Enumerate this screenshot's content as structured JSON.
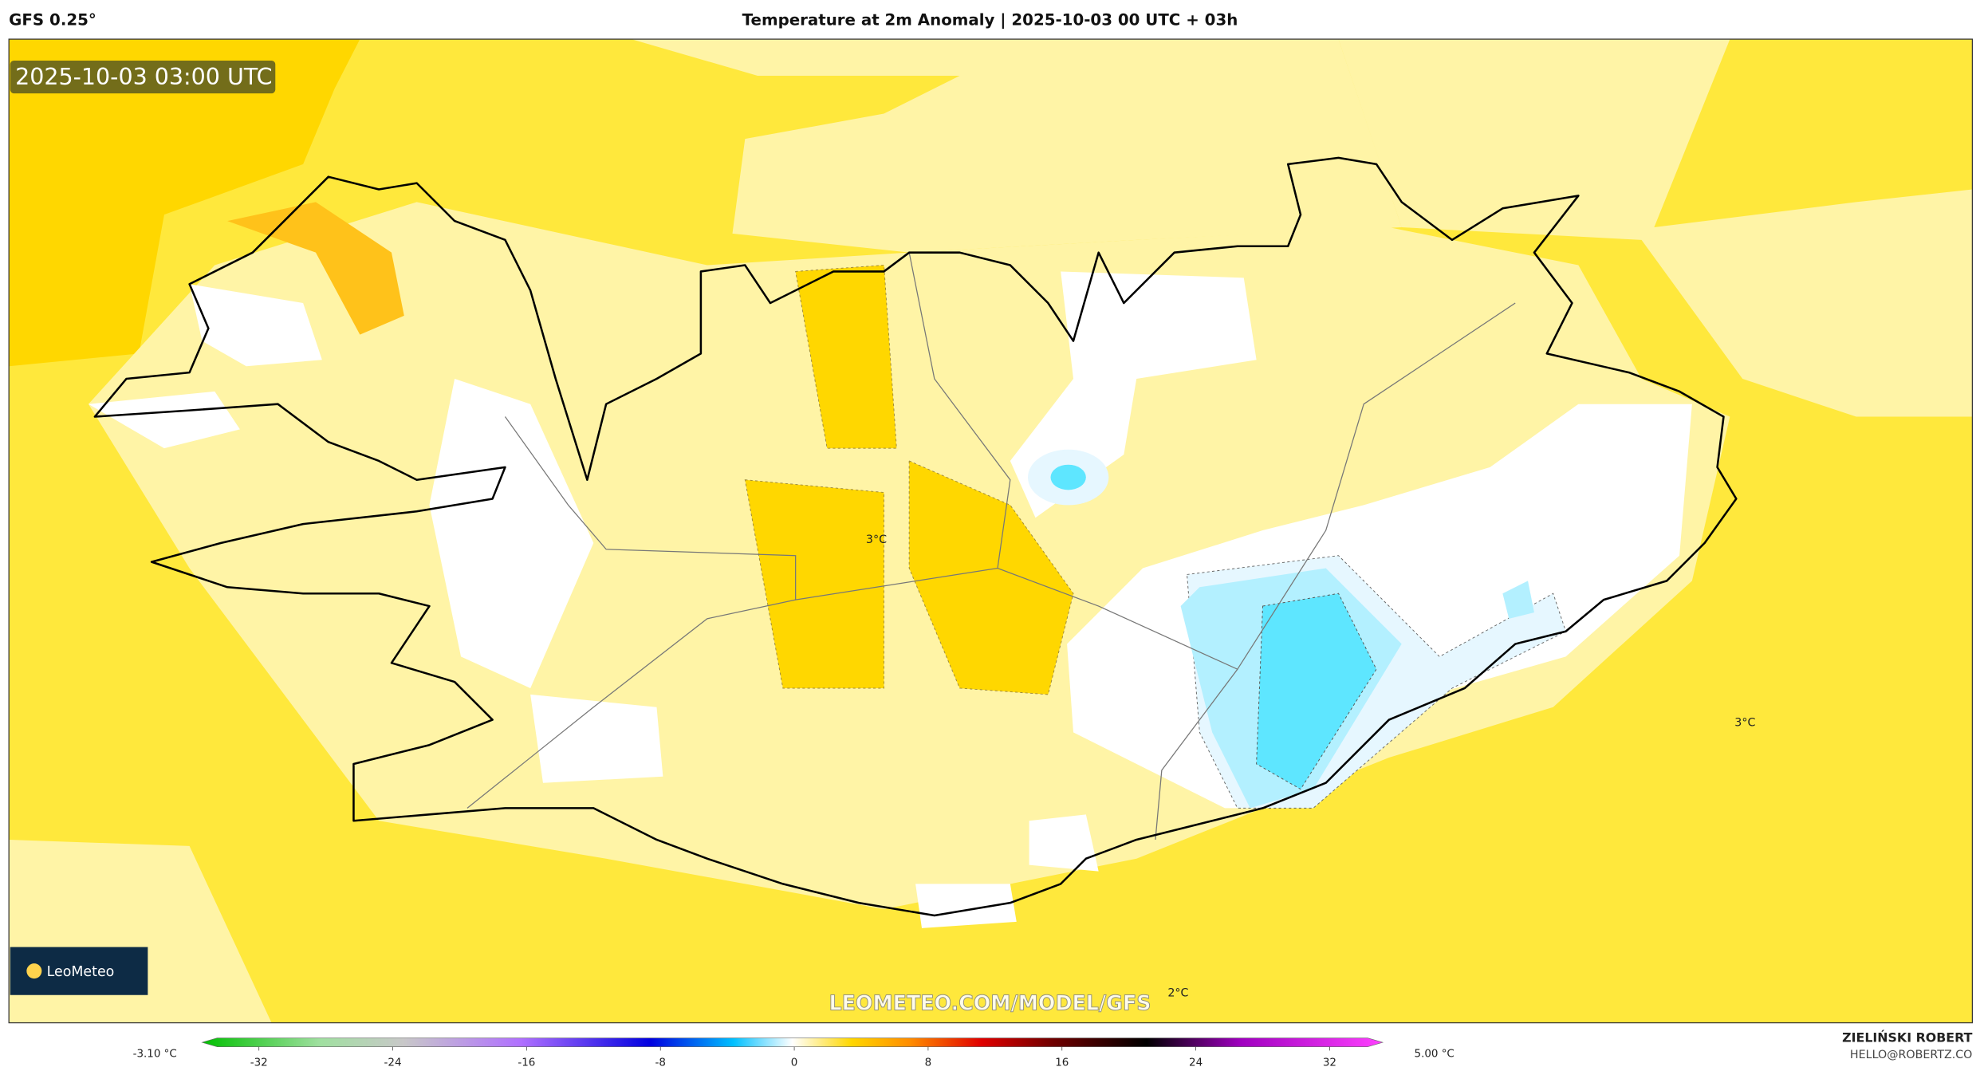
{
  "header": {
    "model": "GFS 0.25°",
    "title": "Temperature at 2m Anomaly | 2025-10-03 00 UTC + 03h"
  },
  "map": {
    "timestamp": "2025-10-03 03:00 UTC",
    "contour_labels": [
      "3°C",
      "3°C",
      "2°C"
    ],
    "watermark": "LEOMETEO.COM/MODEL/GFS",
    "logo": "LeoMeteo"
  },
  "colorbar": {
    "min_label": "-3.10 °C",
    "max_label": "5.00 °C",
    "ticks": [
      -32,
      -24,
      -16,
      -8,
      0,
      8,
      16,
      24,
      32
    ]
  },
  "credits": {
    "author": "ZIELIŃSKI ROBERT",
    "email": "HELLO@ROBERTZ.CO"
  }
}
